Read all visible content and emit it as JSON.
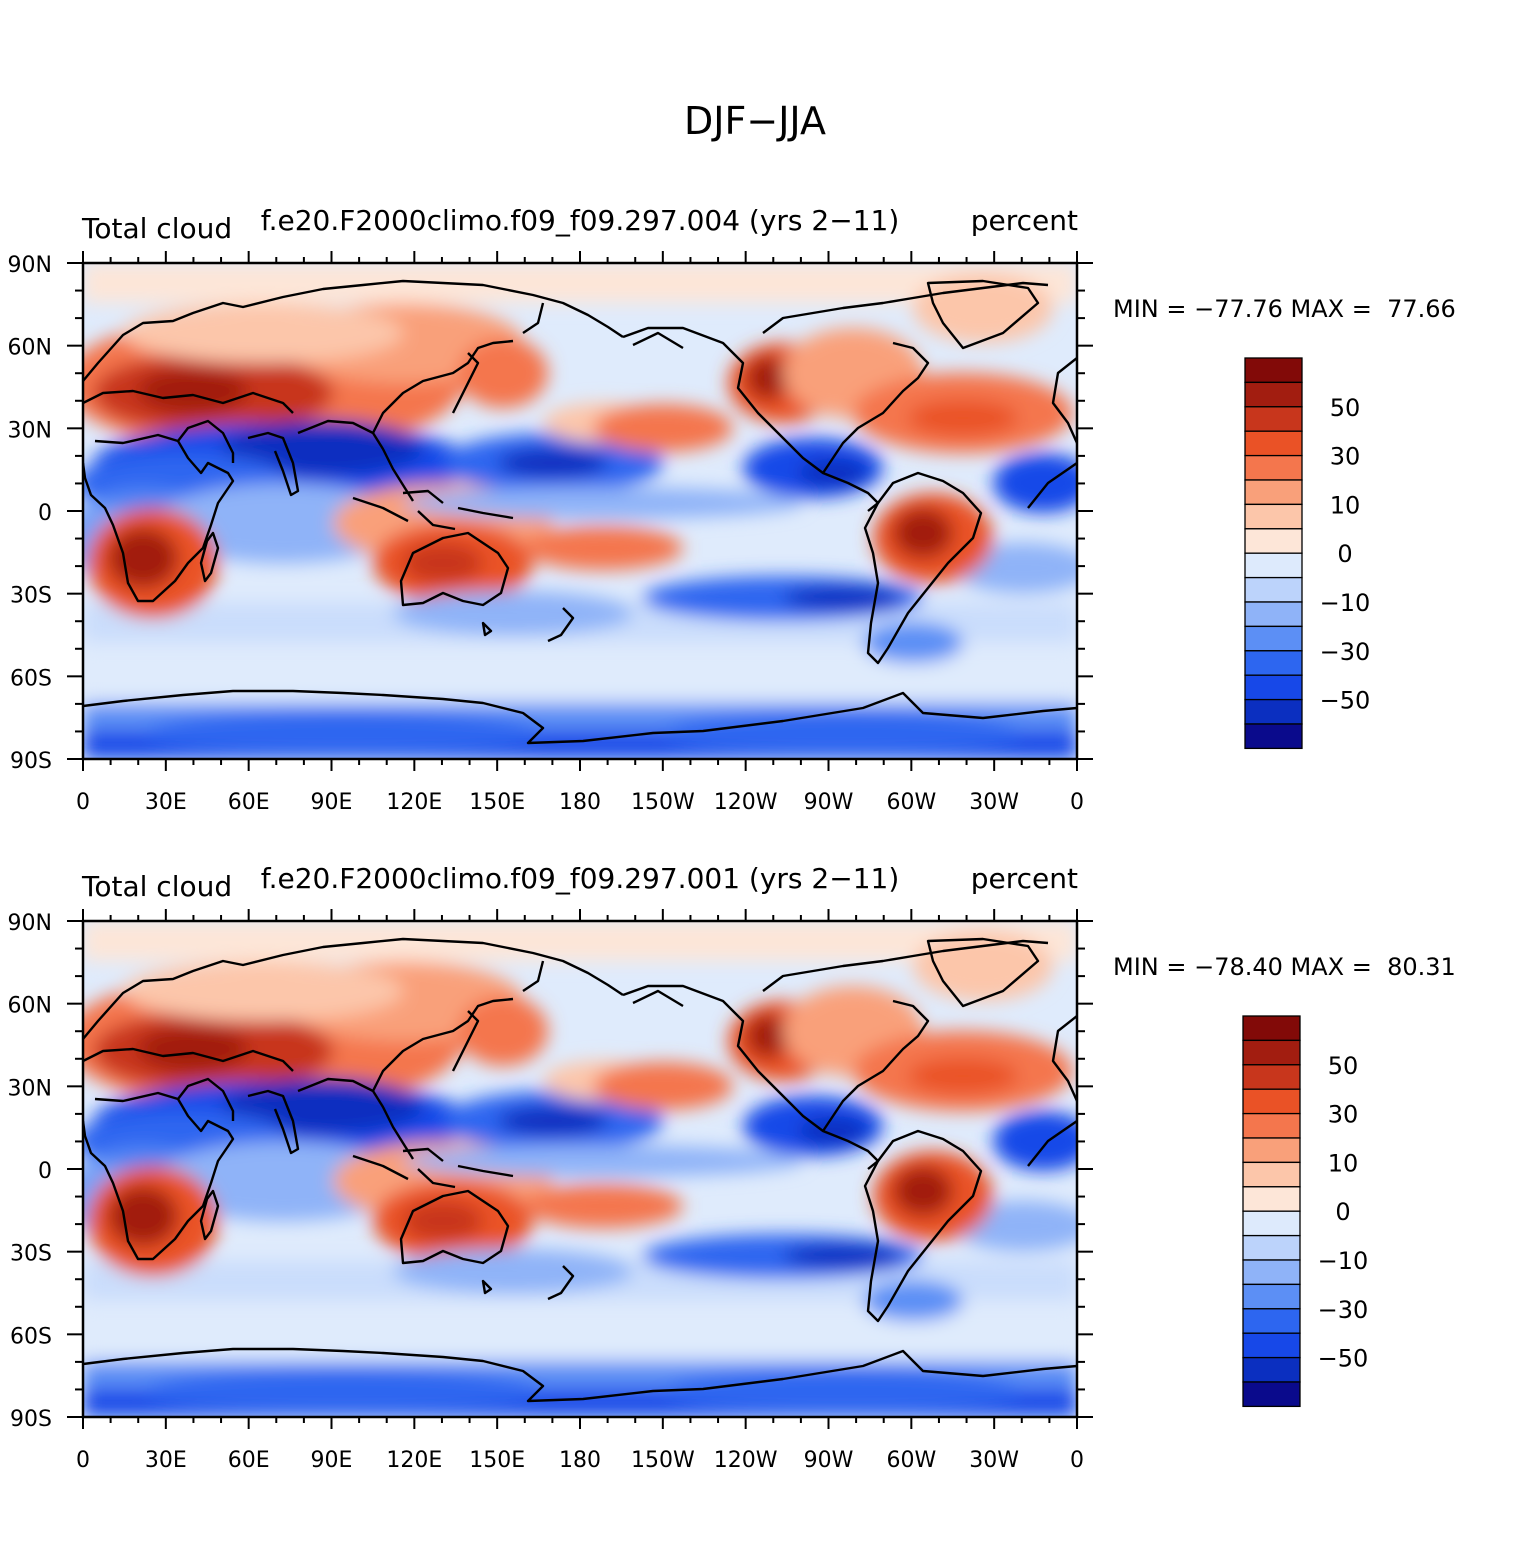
{
  "figure": {
    "title": "DJF−JJA",
    "colors": {
      "ocean_base": "#ffffff",
      "coast": "#000000",
      "palette": [
        "#0a0a8c",
        "#0b2fc0",
        "#1748e8",
        "#2d66f0",
        "#5c8ff5",
        "#8fb3f8",
        "#bcd3fb",
        "#ddeafc",
        "#fde6d8",
        "#fcc6aa",
        "#f9a07a",
        "#f4764d",
        "#ea5226",
        "#c8361c",
        "#a21d10",
        "#820a08"
      ]
    }
  },
  "panels": [
    {
      "left_title": "Total cloud",
      "center_title": "f.e20.F2000climo.f09_f09.297.004 (yrs 2−11)",
      "right_title": "percent",
      "stats": "MIN = −77.76 MAX =  77.66",
      "lat_labels": [
        "90N",
        "60N",
        "30N",
        "0",
        "30S",
        "60S",
        "90S"
      ],
      "lon_labels": [
        "0",
        "30E",
        "60E",
        "90E",
        "120E",
        "150E",
        "180",
        "150W",
        "120W",
        "90W",
        "60W",
        "30W",
        "0"
      ],
      "colorbar_labels": [
        "50",
        "30",
        "10",
        "0",
        "−10",
        "−30",
        "−50"
      ]
    },
    {
      "left_title": "Total cloud",
      "center_title": "f.e20.F2000climo.f09_f09.297.001 (yrs 2−11)",
      "right_title": "percent",
      "stats": "MIN = −78.40 MAX =  80.31",
      "lat_labels": [
        "90N",
        "60N",
        "30N",
        "0",
        "30S",
        "60S",
        "90S"
      ],
      "lon_labels": [
        "0",
        "30E",
        "60E",
        "90E",
        "120E",
        "150E",
        "180",
        "150W",
        "120W",
        "90W",
        "60W",
        "30W",
        "0"
      ],
      "colorbar_labels": [
        "50",
        "30",
        "10",
        "0",
        "−10",
        "−30",
        "−50"
      ]
    }
  ]
}
